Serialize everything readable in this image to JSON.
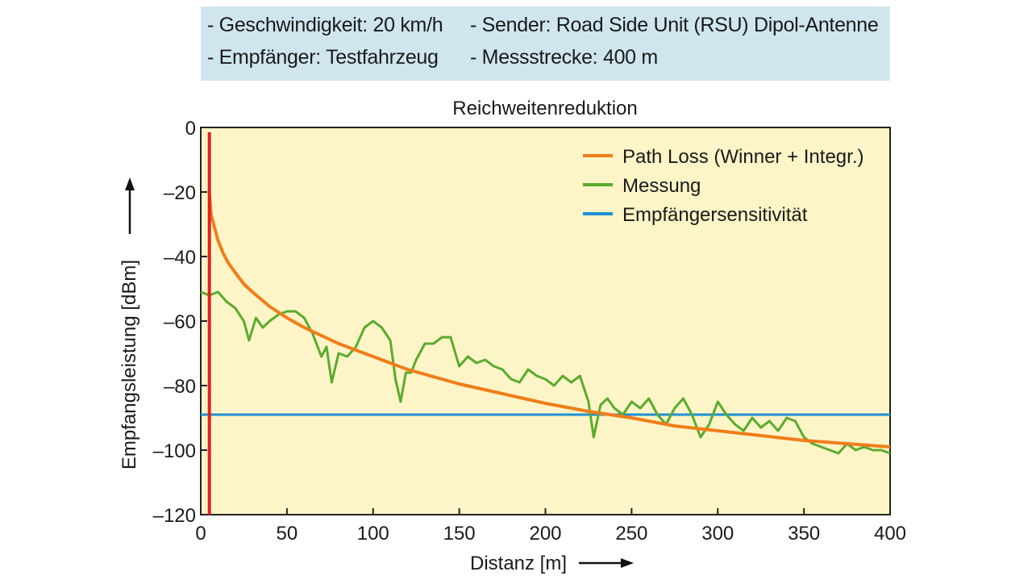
{
  "info": {
    "speed": "- Geschwindigkeit: 20 km/h",
    "sender": "- Sender: Road Side Unit (RSU) Dipol-Antenne",
    "receiver": "- Empfänger: Testfahrzeug",
    "track": "- Messstrecke: 400 m"
  },
  "chart_data": {
    "type": "line",
    "title": "Reichweitenreduktion",
    "xlabel": "Distanz [m]",
    "ylabel": "Empfangsleistung [dBm]",
    "xlim": [
      0,
      400
    ],
    "ylim": [
      -120,
      0
    ],
    "xticks": [
      0,
      50,
      100,
      150,
      200,
      250,
      300,
      350,
      400
    ],
    "yticks": [
      0,
      -20,
      -40,
      -60,
      -80,
      -100,
      -120
    ],
    "xtick_labels": [
      "0",
      "50",
      "100",
      "150",
      "200",
      "250",
      "300",
      "350",
      "400"
    ],
    "ytick_labels": [
      "0",
      "–20",
      "–40",
      "–60",
      "–80",
      "–100",
      "–120"
    ],
    "grid": false,
    "legend_position": "top-right",
    "background_color": "#fdf5c7",
    "series": [
      {
        "name": "Path Loss (Winner + Integr.)",
        "color": "#f07d1a",
        "x": [
          5,
          6,
          8,
          10,
          13,
          16,
          20,
          25,
          30,
          40,
          50,
          60,
          70,
          80,
          100,
          120,
          150,
          175,
          200,
          225,
          250,
          275,
          300,
          325,
          350,
          375,
          400
        ],
        "y": [
          -21,
          -27,
          -31,
          -35,
          -39,
          -42,
          -45,
          -48.5,
          -51,
          -55.5,
          -59,
          -62,
          -64.5,
          -67,
          -71,
          -75,
          -79.5,
          -82.5,
          -85.5,
          -88,
          -90,
          -92.5,
          -94,
          -95.5,
          -97,
          -98,
          -99
        ]
      },
      {
        "name": "Messung",
        "color": "#5aab2e",
        "x": [
          0,
          5,
          10,
          15,
          20,
          25,
          28,
          32,
          36,
          40,
          45,
          50,
          55,
          60,
          65,
          70,
          73,
          76,
          80,
          85,
          90,
          95,
          100,
          105,
          110,
          113,
          116,
          119,
          122,
          125,
          130,
          135,
          140,
          145,
          150,
          155,
          160,
          165,
          170,
          175,
          180,
          185,
          190,
          195,
          200,
          205,
          210,
          215,
          220,
          225,
          228,
          232,
          236,
          240,
          245,
          250,
          255,
          260,
          265,
          270,
          275,
          280,
          285,
          290,
          295,
          300,
          305,
          310,
          315,
          320,
          325,
          330,
          335,
          340,
          345,
          350,
          355,
          360,
          365,
          370,
          375,
          380,
          385,
          390,
          395,
          400
        ],
        "y": [
          -51,
          -52,
          -51,
          -54,
          -56,
          -60,
          -66,
          -59,
          -62,
          -60,
          -58,
          -57,
          -57,
          -59,
          -64,
          -71,
          -68,
          -79,
          -70,
          -71,
          -68,
          -62,
          -60,
          -62,
          -66,
          -78,
          -85,
          -76,
          -76,
          -72,
          -67,
          -67,
          -65,
          -65,
          -74,
          -71,
          -73,
          -72,
          -74,
          -75,
          -78,
          -79,
          -75,
          -77,
          -78,
          -80,
          -77,
          -79,
          -77,
          -85,
          -96,
          -86,
          -84,
          -87,
          -89,
          -85,
          -87,
          -84,
          -89,
          -92,
          -87,
          -84,
          -89,
          -96,
          -92,
          -85,
          -89,
          -92,
          -94,
          -90,
          -93,
          -91,
          -94,
          -90,
          -91,
          -96,
          -98,
          -99,
          -100,
          -101,
          -98,
          -100,
          -99,
          -100,
          -100,
          -101
        ]
      },
      {
        "name": "Empfängersensitivität",
        "color": "#1e8fd5",
        "x": [
          0,
          400
        ],
        "y": [
          -89,
          -89
        ]
      }
    ],
    "annotations": [
      {
        "type": "vertical-line",
        "x": 5,
        "color": "#e32020"
      }
    ]
  }
}
